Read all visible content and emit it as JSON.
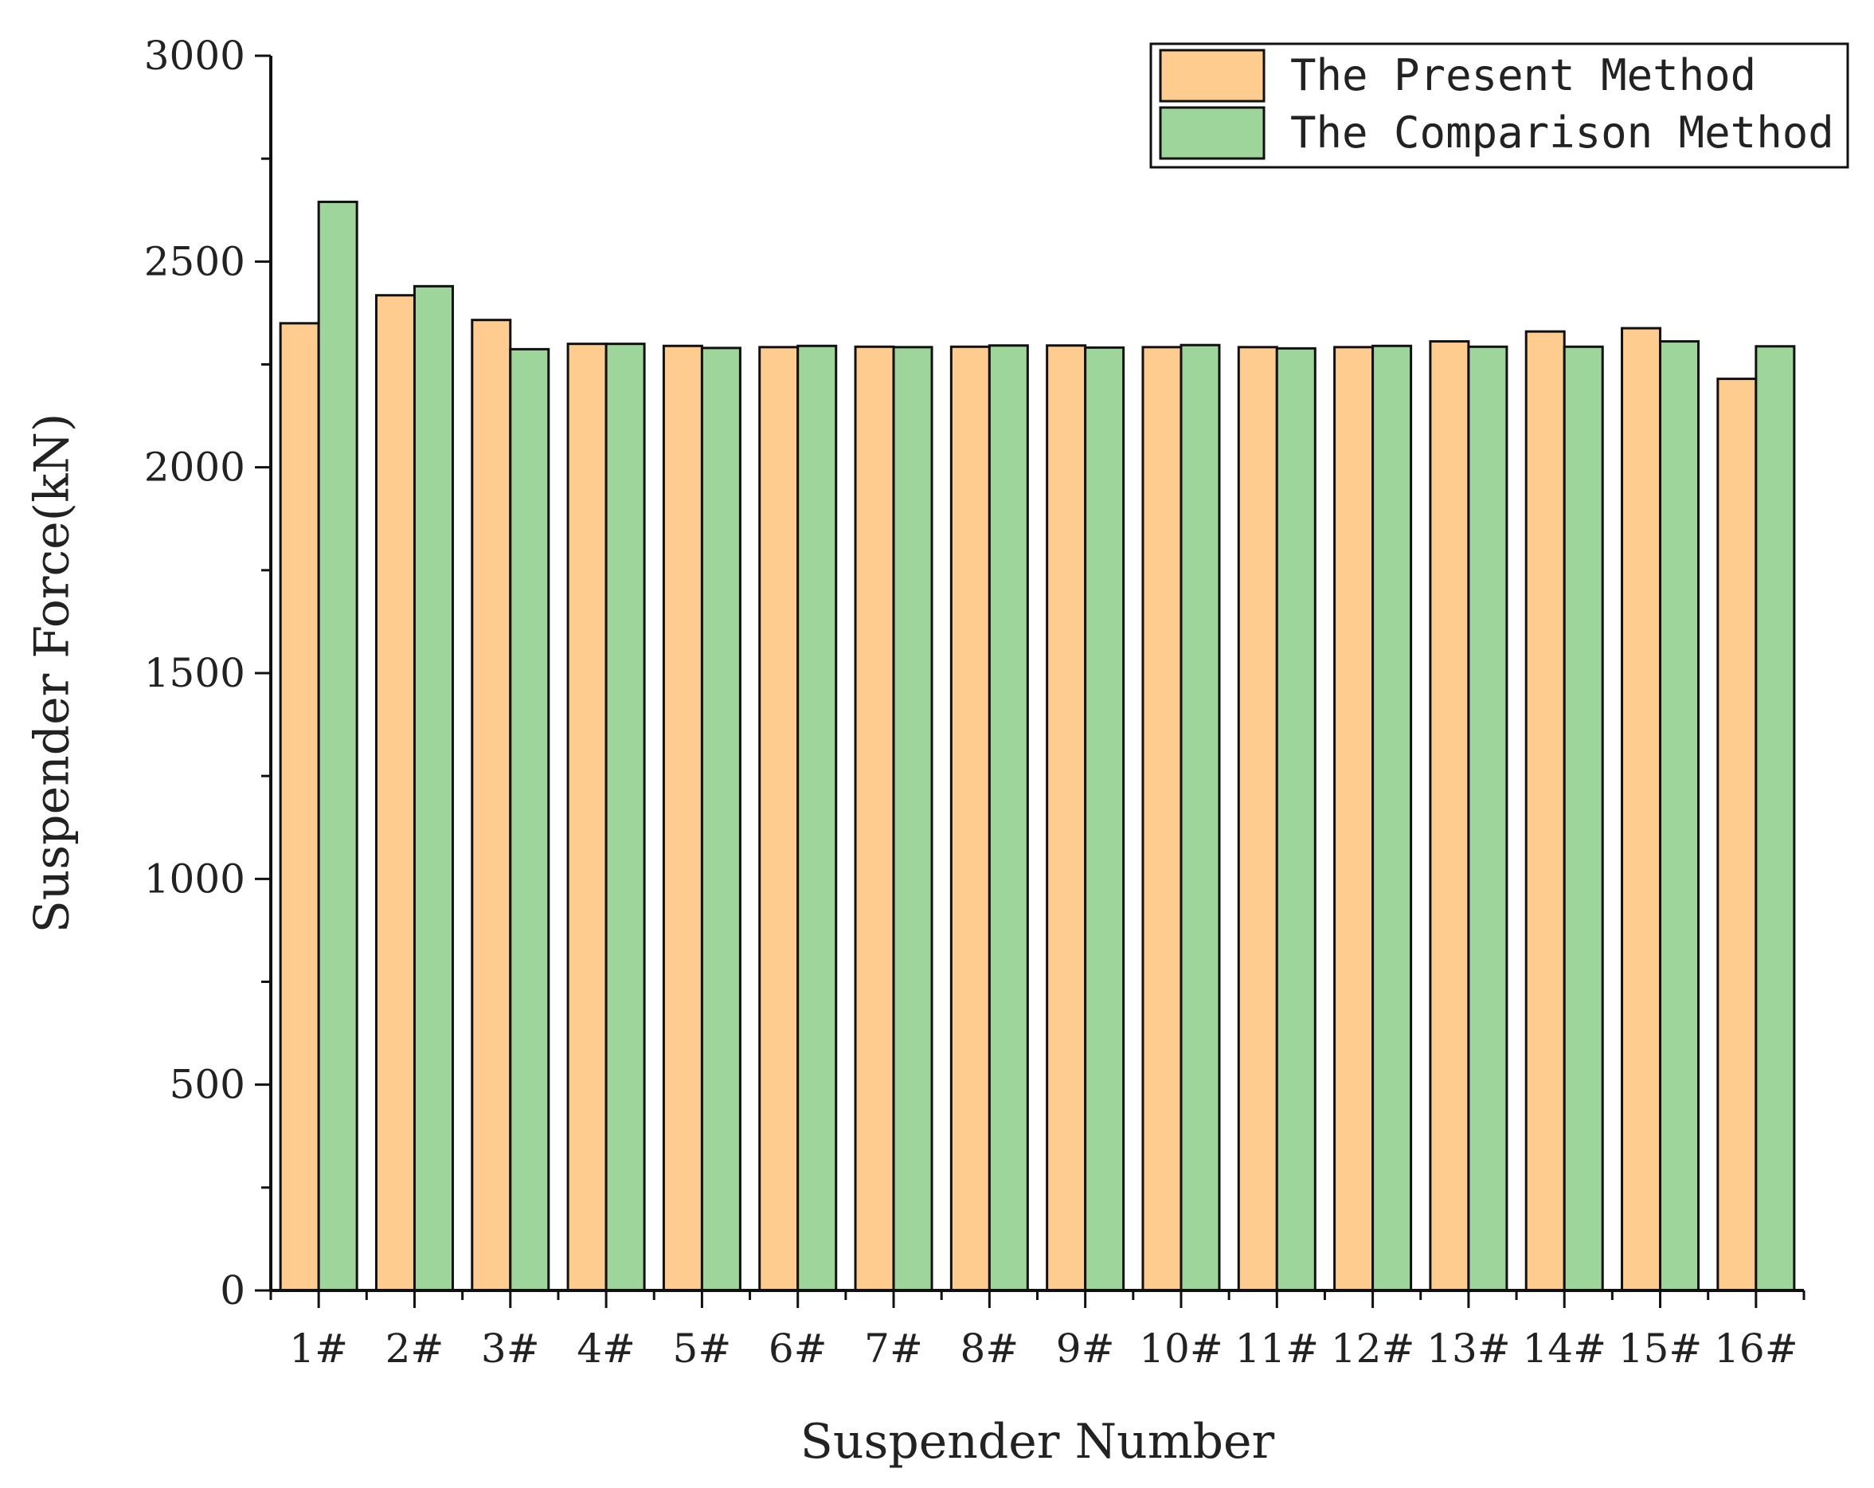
{
  "chart_data": {
    "type": "bar",
    "xlabel": "Suspender Number",
    "ylabel": "Suspender Force(kN)",
    "ylim": [
      0,
      3000
    ],
    "yticks": [
      0,
      500,
      1000,
      1500,
      2000,
      2500,
      3000
    ],
    "grid": false,
    "legend_position": "top-right",
    "categories": [
      "1#",
      "2#",
      "3#",
      "4#",
      "5#",
      "6#",
      "7#",
      "8#",
      "9#",
      "10#",
      "11#",
      "12#",
      "13#",
      "14#",
      "15#",
      "16#"
    ],
    "series": [
      {
        "name": "The Present Method",
        "color": "#FFCC90",
        "values": [
          2350,
          2418,
          2358,
          2300,
          2295,
          2292,
          2293,
          2293,
          2296,
          2292,
          2292,
          2292,
          2306,
          2330,
          2338,
          2215
        ]
      },
      {
        "name": "The Comparison Method",
        "color": "#9ED59A",
        "values": [
          2645,
          2440,
          2287,
          2300,
          2290,
          2295,
          2292,
          2296,
          2291,
          2297,
          2289,
          2295,
          2293,
          2293,
          2306,
          2294
        ]
      }
    ]
  }
}
